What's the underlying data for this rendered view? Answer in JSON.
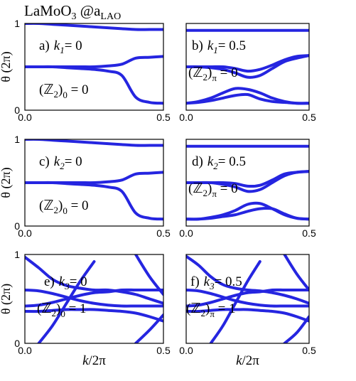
{
  "title": {
    "main": "LaMoO",
    "sub": "3",
    "rest": " @a",
    "sub2": "LAO"
  },
  "chart_data": [
    {
      "type": "line",
      "panel": {
        "letter": "a)",
        "var": "k",
        "sub": "1",
        "rest": "= 0"
      },
      "annotation": {
        "open": "(ℤ",
        "sub": "2",
        "close": ")",
        "index": "0",
        "rest": " = 0"
      },
      "ylabel": "θ (2π)",
      "x": [
        0,
        0.05,
        0.1,
        0.15,
        0.2,
        0.25,
        0.3,
        0.35,
        0.4,
        0.45,
        0.5
      ],
      "xlim": [
        0,
        0.5
      ],
      "ylim": [
        0,
        1
      ],
      "xticks": [
        {
          "value": 0,
          "label": "0.0"
        },
        {
          "value": 0.5,
          "label": "0.5"
        }
      ],
      "yticks": [
        0,
        1
      ],
      "series": [
        {
          "color": "#2525e0",
          "values": [
            1,
            1,
            0.99,
            0.98,
            0.97,
            0.96,
            0.95,
            0.94,
            0.93,
            0.93,
            0.93
          ]
        },
        {
          "color": "#2525e0",
          "values": [
            0.5,
            0.5,
            0.5,
            0.5,
            0.5,
            0.5,
            0.51,
            0.53,
            0.6,
            0.61,
            0.62
          ]
        },
        {
          "color": "#2525e0",
          "values": [
            0.5,
            0.5,
            0.5,
            0.49,
            0.48,
            0.47,
            0.45,
            0.4,
            0.15,
            0.09,
            0.08
          ]
        }
      ]
    },
    {
      "type": "line",
      "panel": {
        "letter": "b)",
        "var": "k",
        "sub": "1",
        "rest": "= 0.5"
      },
      "annotation": {
        "open": "(ℤ",
        "sub": "2",
        "close": ")",
        "index": "π",
        "rest": " = 0"
      },
      "x": [
        0,
        0.05,
        0.1,
        0.15,
        0.2,
        0.25,
        0.3,
        0.35,
        0.4,
        0.45,
        0.5
      ],
      "xlim": [
        0,
        0.5
      ],
      "ylim": [
        0,
        1
      ],
      "xticks": [
        {
          "value": 0,
          "label": "0.0"
        },
        {
          "value": 0.5,
          "label": "0.5"
        }
      ],
      "series": [
        {
          "color": "#2525e0",
          "values": [
            0.92,
            0.92,
            0.92,
            0.92,
            0.92,
            0.92,
            0.92,
            0.92,
            0.92,
            0.92,
            0.92
          ]
        },
        {
          "color": "#2525e0",
          "values": [
            0.5,
            0.5,
            0.49,
            0.47,
            0.43,
            0.38,
            0.4,
            0.48,
            0.56,
            0.6,
            0.63
          ]
        },
        {
          "color": "#2525e0",
          "values": [
            0.5,
            0.5,
            0.5,
            0.5,
            0.48,
            0.45,
            0.47,
            0.52,
            0.58,
            0.62,
            0.63
          ]
        },
        {
          "color": "#2525e0",
          "values": [
            0.08,
            0.1,
            0.14,
            0.2,
            0.25,
            0.24,
            0.2,
            0.14,
            0.1,
            0.08,
            0.08
          ]
        },
        {
          "color": "#2525e0",
          "values": [
            0.08,
            0.09,
            0.11,
            0.14,
            0.17,
            0.18,
            0.13,
            0.1,
            0.09,
            0.08,
            0.08
          ]
        }
      ]
    },
    {
      "type": "line",
      "panel": {
        "letter": "c)",
        "var": "k",
        "sub": "2",
        "rest": "= 0"
      },
      "annotation": {
        "open": "(ℤ",
        "sub": "2",
        "close": ")",
        "index": "0",
        "rest": " = 0"
      },
      "ylabel": "θ (2π)",
      "x": [
        0,
        0.05,
        0.1,
        0.15,
        0.2,
        0.25,
        0.3,
        0.35,
        0.4,
        0.45,
        0.5
      ],
      "xlim": [
        0,
        0.5
      ],
      "ylim": [
        0,
        1
      ],
      "xticks": [
        {
          "value": 0,
          "label": "0.0"
        },
        {
          "value": 0.5,
          "label": "0.5"
        }
      ],
      "yticks": [
        0,
        1
      ],
      "series": [
        {
          "color": "#2525e0",
          "values": [
            1,
            1,
            0.99,
            0.98,
            0.97,
            0.96,
            0.95,
            0.94,
            0.93,
            0.93,
            0.93
          ]
        },
        {
          "color": "#2525e0",
          "values": [
            0.5,
            0.5,
            0.5,
            0.5,
            0.5,
            0.5,
            0.51,
            0.53,
            0.6,
            0.61,
            0.62
          ]
        },
        {
          "color": "#2525e0",
          "values": [
            0.5,
            0.5,
            0.5,
            0.49,
            0.48,
            0.47,
            0.45,
            0.4,
            0.15,
            0.09,
            0.08
          ]
        }
      ]
    },
    {
      "type": "line",
      "panel": {
        "letter": "d)",
        "var": "k",
        "sub": "2",
        "rest": "= 0.5"
      },
      "annotation": {
        "open": "(ℤ",
        "sub": "2",
        "close": ")",
        "index": "π",
        "rest": " = 0"
      },
      "x": [
        0,
        0.05,
        0.1,
        0.15,
        0.2,
        0.25,
        0.3,
        0.35,
        0.4,
        0.45,
        0.5
      ],
      "xlim": [
        0,
        0.5
      ],
      "ylim": [
        0,
        1
      ],
      "xticks": [
        {
          "value": 0,
          "label": "0.0"
        },
        {
          "value": 0.5,
          "label": "0.5"
        }
      ],
      "series": [
        {
          "color": "#2525e0",
          "values": [
            0.92,
            0.92,
            0.92,
            0.92,
            0.92,
            0.92,
            0.92,
            0.92,
            0.92,
            0.92,
            0.92
          ]
        },
        {
          "color": "#2525e0",
          "values": [
            0.5,
            0.5,
            0.5,
            0.48,
            0.45,
            0.4,
            0.42,
            0.5,
            0.58,
            0.62,
            0.63
          ]
        },
        {
          "color": "#2525e0",
          "values": [
            0.5,
            0.5,
            0.5,
            0.5,
            0.49,
            0.46,
            0.47,
            0.53,
            0.6,
            0.62,
            0.63
          ]
        },
        {
          "color": "#2525e0",
          "values": [
            0.08,
            0.08,
            0.1,
            0.13,
            0.18,
            0.25,
            0.26,
            0.2,
            0.13,
            0.09,
            0.08
          ]
        },
        {
          "color": "#2525e0",
          "values": [
            0.08,
            0.08,
            0.09,
            0.11,
            0.13,
            0.17,
            0.2,
            0.2,
            0.14,
            0.09,
            0.08
          ]
        }
      ]
    },
    {
      "type": "line",
      "panel": {
        "letter": "e)",
        "var": "k",
        "sub": "3",
        "rest": "= 0"
      },
      "annotation": {
        "open": "(ℤ",
        "sub": "2",
        "close": ")",
        "index": "0",
        "rest": " = 1"
      },
      "ylabel": "θ (2π)",
      "xlabel": {
        "var": "k",
        "rest": "/2π"
      },
      "x": [
        0,
        0.05,
        0.1,
        0.15,
        0.2,
        0.25,
        0.3,
        0.35,
        0.4,
        0.45,
        0.5
      ],
      "xlim": [
        0,
        0.5
      ],
      "ylim": [
        0,
        1
      ],
      "xticks": [
        {
          "value": 0,
          "label": "0.0"
        },
        {
          "value": 0.5,
          "label": "0.5"
        }
      ],
      "yticks": [
        0,
        1
      ],
      "series": [
        {
          "color": "#2525e0",
          "values": [
            null,
            0,
            0.2,
            0.45,
            0.7,
            0.92,
            null,
            null,
            null,
            null,
            null
          ]
        },
        {
          "color": "#2525e0",
          "values": [
            0.97,
            0.85,
            0.72,
            0.65,
            0.62,
            0.6,
            0.6,
            0.58,
            0.55,
            0.5,
            0.45
          ]
        },
        {
          "color": "#2525e0",
          "values": [
            0.6,
            0.59,
            0.56,
            0.52,
            0.48,
            0.45,
            0.43,
            0.42,
            0.42,
            0.42,
            0.42
          ]
        },
        {
          "color": "#2525e0",
          "values": [
            0.42,
            0.43,
            0.46,
            0.5,
            0.54,
            0.57,
            0.58,
            0.6,
            0.6,
            0.6,
            0.6
          ]
        },
        {
          "color": "#2525e0",
          "values": [
            0.36,
            0.36,
            0.37,
            0.38,
            0.38,
            0.38,
            0.37,
            0.36,
            0.34,
            0.3,
            0.25
          ]
        },
        {
          "color": "#2525e0",
          "values": [
            null,
            null,
            null,
            null,
            null,
            null,
            null,
            null,
            1,
            0.75,
            0.55
          ]
        },
        {
          "color": "#2525e0",
          "values": [
            null,
            null,
            null,
            null,
            null,
            null,
            null,
            null,
            0,
            0.15,
            0.32
          ]
        }
      ]
    },
    {
      "type": "line",
      "panel": {
        "letter": "f)",
        "var": "k",
        "sub": "3",
        "rest": "= 0.5"
      },
      "annotation": {
        "open": "(ℤ",
        "sub": "2",
        "close": ")",
        "index": "π",
        "rest": " = 1"
      },
      "xlabel": {
        "var": "k",
        "rest": "/2π"
      },
      "x": [
        0,
        0.05,
        0.1,
        0.15,
        0.2,
        0.25,
        0.3,
        0.35,
        0.4,
        0.45,
        0.5
      ],
      "xlim": [
        0,
        0.5
      ],
      "ylim": [
        0,
        1
      ],
      "xticks": [
        {
          "value": 0,
          "label": "0.0"
        },
        {
          "value": 0.5,
          "label": "0.5"
        }
      ],
      "series": [
        {
          "color": "#2525e0",
          "values": [
            null,
            null,
            0,
            0.2,
            0.45,
            0.7,
            0.92,
            null,
            null,
            null,
            null
          ]
        },
        {
          "color": "#2525e0",
          "values": [
            0.98,
            0.88,
            0.75,
            0.66,
            0.62,
            0.6,
            0.59,
            0.57,
            0.54,
            0.5,
            0.45
          ]
        },
        {
          "color": "#2525e0",
          "values": [
            0.6,
            0.59,
            0.56,
            0.52,
            0.48,
            0.45,
            0.43,
            0.42,
            0.42,
            0.42,
            0.42
          ]
        },
        {
          "color": "#2525e0",
          "values": [
            0.42,
            0.43,
            0.46,
            0.5,
            0.54,
            0.57,
            0.58,
            0.6,
            0.6,
            0.6,
            0.6
          ]
        },
        {
          "color": "#2525e0",
          "values": [
            0.36,
            0.36,
            0.37,
            0.38,
            0.38,
            0.38,
            0.37,
            0.36,
            0.34,
            0.3,
            0.25
          ]
        },
        {
          "color": "#2525e0",
          "values": [
            null,
            null,
            null,
            null,
            null,
            null,
            null,
            null,
            1,
            0.78,
            0.6
          ]
        },
        {
          "color": "#2525e0",
          "values": [
            null,
            null,
            null,
            null,
            null,
            null,
            null,
            null,
            0,
            0.12,
            0.3
          ]
        }
      ]
    }
  ]
}
